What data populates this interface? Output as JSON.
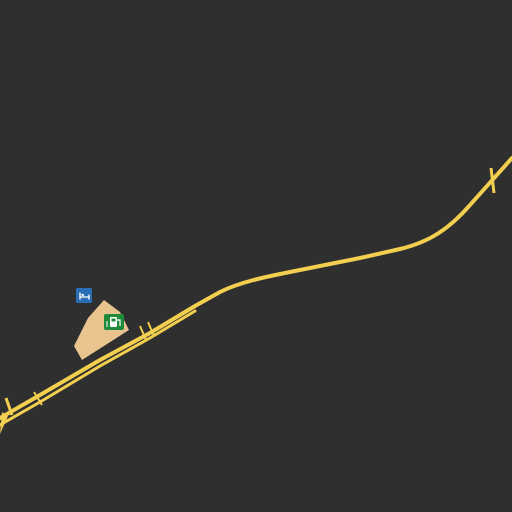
{
  "map": {
    "colors": {
      "background": "#2f2f2f",
      "road": "#f3cf4f",
      "road_casing": "#c9a93a",
      "building": "#e9c48f",
      "fuel_badge": "#1f8a3a",
      "lodging_badge": "#2a6fb5"
    },
    "features": {
      "road": {
        "kind": "highway"
      },
      "building": {
        "kind": "building"
      },
      "fuel": {
        "icon": "fuel-pump-icon"
      },
      "lodging": {
        "icon": "bed-icon"
      }
    }
  }
}
